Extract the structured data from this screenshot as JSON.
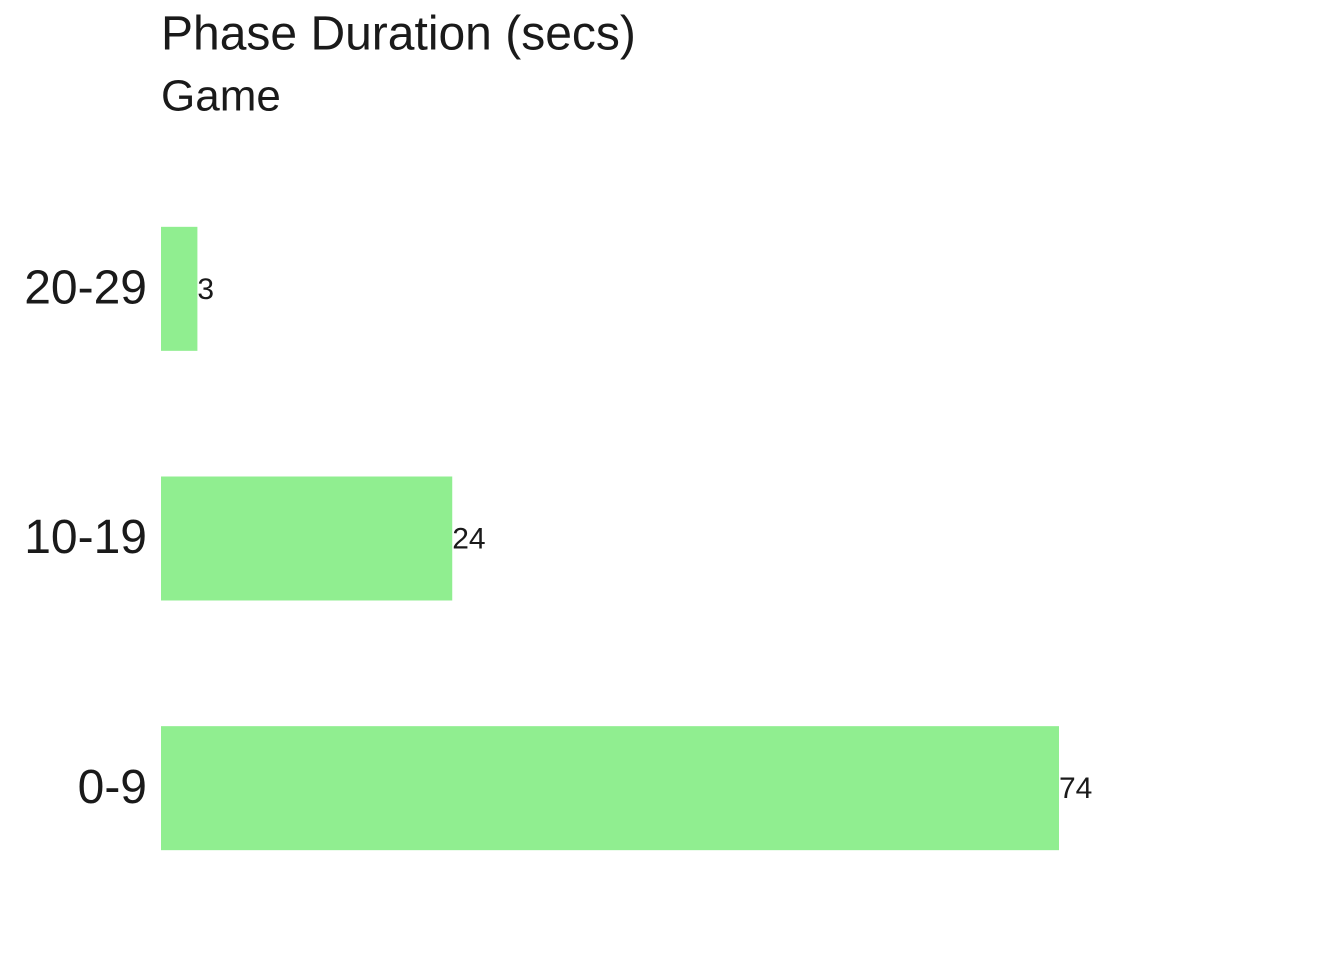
{
  "chart_data": {
    "type": "bar",
    "orientation": "horizontal",
    "title": "Phase Duration (secs)",
    "subtitle": "Game",
    "categories": [
      "0-9",
      "10-19",
      "20-29"
    ],
    "values": [
      74,
      24,
      3
    ],
    "color": "#90ee90"
  }
}
